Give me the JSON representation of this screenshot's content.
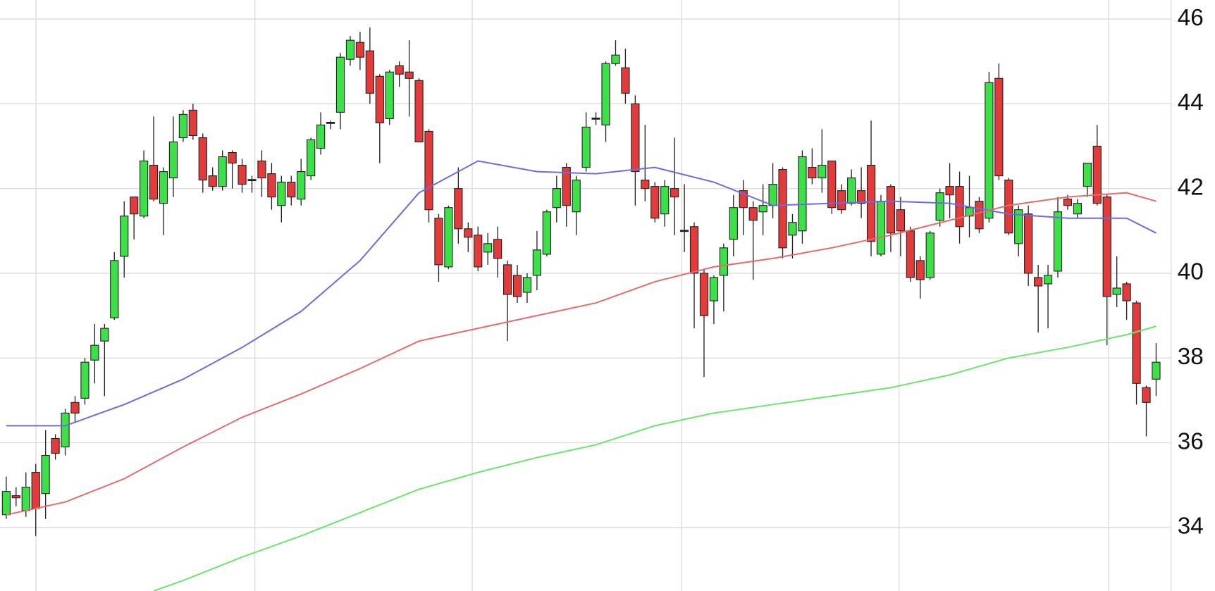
{
  "chart_data": {
    "type": "candlestick",
    "open": [
      34.3,
      34.75,
      34.4,
      35.3,
      34.8,
      36.1,
      35.9,
      36.95,
      37.05,
      37.95,
      38.4,
      38.95,
      40.4,
      41.8,
      41.35,
      42.55,
      41.65,
      42.25,
      43.2,
      43.85,
      43.2,
      42.3,
      42.05,
      42.85,
      42.55,
      42.2,
      42.65,
      42.35,
      41.6,
      42.15,
      41.75,
      42.3,
      42.95,
      43.55,
      43.8,
      45.05,
      45.45,
      45.25,
      44.65,
      43.65,
      44.9,
      44.75,
      44.55,
      43.35,
      41.3,
      40.15,
      42.0,
      41.05,
      40.9,
      40.5,
      40.8,
      40.2,
      39.95,
      39.55,
      39.95,
      40.45,
      41.55,
      42.5,
      41.45,
      42.5,
      43.65,
      43.5,
      44.95,
      44.85,
      44.0,
      42.2,
      42.05,
      41.4,
      42.0,
      41.0,
      41.1,
      40.0,
      39.35,
      39.95,
      40.8,
      41.95,
      41.55,
      41.45,
      41.6,
      42.45,
      40.9,
      41.0,
      42.5,
      42.25,
      42.65,
      41.95,
      41.65,
      41.95,
      42.55,
      40.45,
      42.05,
      41.5,
      41.0,
      40.3,
      39.9,
      41.25,
      42.05,
      42.05,
      41.35,
      41.7,
      41.3,
      44.6,
      42.2,
      40.7,
      41.4,
      39.9,
      39.75,
      40.05,
      41.75,
      41.4,
      42.05,
      43.0,
      41.8,
      39.5,
      39.75,
      39.3,
      37.3,
      37.5
    ],
    "high": [
      35.2,
      34.95,
      35.3,
      35.5,
      36.3,
      36.2,
      36.8,
      37.1,
      38.0,
      38.8,
      38.8,
      40.5,
      41.7,
      41.8,
      42.9,
      43.7,
      42.5,
      43.7,
      43.85,
      44.0,
      43.3,
      42.5,
      42.9,
      42.9,
      42.7,
      42.3,
      42.9,
      42.6,
      42.3,
      42.3,
      42.7,
      43.2,
      43.8,
      43.6,
      45.2,
      45.6,
      45.7,
      45.8,
      44.7,
      44.8,
      45.0,
      45.5,
      44.6,
      43.4,
      41.4,
      41.6,
      42.5,
      41.2,
      41.1,
      40.95,
      41.1,
      40.3,
      40.2,
      40.0,
      41.0,
      41.5,
      42.3,
      42.6,
      42.3,
      43.8,
      43.8,
      45.0,
      45.5,
      45.3,
      44.2,
      43.5,
      42.15,
      42.2,
      43.2,
      42.1,
      41.2,
      40.1,
      39.95,
      40.7,
      41.85,
      42.2,
      41.7,
      42.1,
      42.6,
      42.5,
      41.4,
      42.9,
      42.95,
      43.4,
      42.65,
      42.1,
      42.45,
      42.5,
      43.6,
      41.85,
      42.1,
      41.8,
      41.1,
      40.4,
      41.0,
      42.0,
      42.6,
      42.4,
      42.3,
      41.8,
      44.75,
      44.95,
      42.25,
      41.6,
      41.6,
      40.2,
      40.2,
      41.8,
      41.85,
      41.75,
      42.6,
      43.5,
      41.85,
      40.4,
      39.8,
      39.35,
      37.35,
      38.35
    ],
    "low": [
      34.2,
      34.5,
      34.25,
      33.8,
      34.2,
      35.6,
      35.7,
      36.5,
      36.9,
      37.4,
      37.1,
      38.9,
      39.9,
      40.8,
      41.3,
      41.7,
      40.9,
      41.8,
      43.1,
      43.15,
      41.9,
      41.95,
      41.95,
      42.0,
      41.9,
      41.9,
      41.8,
      41.5,
      41.2,
      41.6,
      41.6,
      42.2,
      42.8,
      43.4,
      43.4,
      44.9,
      44.8,
      44.0,
      42.6,
      43.5,
      44.4,
      43.7,
      43.1,
      41.2,
      39.8,
      40.1,
      40.7,
      40.5,
      40.05,
      40.2,
      39.9,
      38.4,
      39.3,
      39.3,
      39.6,
      40.4,
      41.2,
      41.1,
      40.9,
      42.4,
      43.5,
      43.1,
      44.9,
      44.0,
      41.6,
      41.7,
      41.2,
      41.1,
      40.9,
      40.5,
      38.7,
      37.55,
      38.8,
      39.1,
      40.4,
      40.9,
      39.85,
      40.9,
      41.3,
      40.35,
      40.35,
      40.7,
      42.1,
      41.9,
      41.4,
      41.4,
      41.6,
      41.3,
      40.4,
      40.4,
      40.5,
      40.4,
      39.8,
      39.4,
      39.85,
      41.1,
      41.3,
      40.7,
      40.85,
      40.95,
      41.2,
      42.2,
      40.9,
      40.4,
      39.7,
      38.6,
      38.7,
      39.9,
      41.5,
      41.3,
      41.8,
      41.6,
      38.3,
      39.2,
      38.9,
      36.9,
      36.15,
      37.1
    ],
    "close": [
      34.85,
      34.7,
      34.95,
      34.45,
      35.7,
      35.75,
      36.7,
      36.7,
      37.9,
      38.3,
      38.7,
      40.3,
      41.35,
      41.4,
      42.65,
      41.75,
      42.4,
      43.1,
      43.75,
      43.25,
      42.2,
      42.05,
      42.75,
      42.6,
      42.1,
      42.2,
      42.25,
      41.8,
      42.15,
      41.8,
      42.4,
      43.15,
      43.5,
      43.55,
      45.1,
      45.5,
      45.1,
      44.25,
      43.55,
      44.75,
      44.7,
      44.6,
      43.1,
      41.5,
      40.2,
      41.55,
      41.05,
      40.85,
      40.15,
      40.7,
      40.35,
      39.5,
      39.45,
      39.9,
      40.55,
      41.45,
      42.0,
      41.6,
      42.2,
      43.45,
      43.65,
      44.95,
      45.15,
      44.25,
      42.4,
      42.0,
      41.3,
      42.05,
      41.8,
      41.0,
      40.0,
      39.0,
      39.9,
      40.6,
      41.55,
      41.55,
      41.25,
      41.6,
      42.1,
      40.6,
      41.2,
      42.75,
      42.25,
      42.55,
      41.55,
      41.5,
      42.25,
      41.65,
      40.75,
      41.7,
      40.95,
      41.0,
      39.9,
      39.85,
      40.95,
      41.9,
      41.85,
      41.1,
      41.55,
      41.05,
      44.5,
      42.3,
      40.95,
      41.5,
      40.0,
      39.7,
      39.95,
      41.45,
      41.6,
      41.65,
      42.6,
      41.65,
      39.45,
      39.65,
      39.35,
      37.4,
      36.95,
      37.9
    ],
    "up_color": "#3ee04a",
    "down_color": "#e23b3b",
    "lines": [
      {
        "color": "#6b6be6",
        "x": [
          0,
          6,
          12,
          18,
          24,
          30,
          36,
          42,
          48,
          54,
          60,
          66,
          72,
          78,
          84,
          90,
          96,
          102,
          108,
          114,
          117
        ],
        "values": [
          36.4,
          36.4,
          36.9,
          37.5,
          38.25,
          39.1,
          40.3,
          41.9,
          42.65,
          42.4,
          42.35,
          42.5,
          42.15,
          41.6,
          41.65,
          41.7,
          41.65,
          41.4,
          41.3,
          41.3,
          40.95
        ]
      },
      {
        "color": "#e66b6b",
        "x": [
          0,
          6,
          12,
          18,
          24,
          30,
          36,
          42,
          48,
          54,
          60,
          66,
          72,
          78,
          84,
          90,
          96,
          102,
          108,
          114,
          117
        ],
        "values": [
          34.3,
          34.6,
          35.15,
          35.9,
          36.6,
          37.15,
          37.75,
          38.4,
          38.7,
          39.0,
          39.3,
          39.8,
          40.15,
          40.35,
          40.6,
          40.9,
          41.25,
          41.6,
          41.8,
          41.9,
          41.7
        ]
      },
      {
        "color": "#6be66b",
        "x": [
          15,
          18,
          24,
          30,
          36,
          42,
          48,
          54,
          60,
          66,
          72,
          78,
          84,
          90,
          96,
          102,
          108,
          114,
          117
        ],
        "values": [
          32.5,
          32.75,
          33.3,
          33.8,
          34.35,
          34.9,
          35.3,
          35.65,
          35.95,
          36.4,
          36.7,
          36.9,
          37.1,
          37.3,
          37.6,
          38.0,
          38.25,
          38.55,
          38.75
        ]
      }
    ],
    "ylim": [
      32.5,
      46.45
    ],
    "yticks": [
      34,
      36,
      38,
      40,
      42,
      44,
      46
    ],
    "grid": true
  }
}
